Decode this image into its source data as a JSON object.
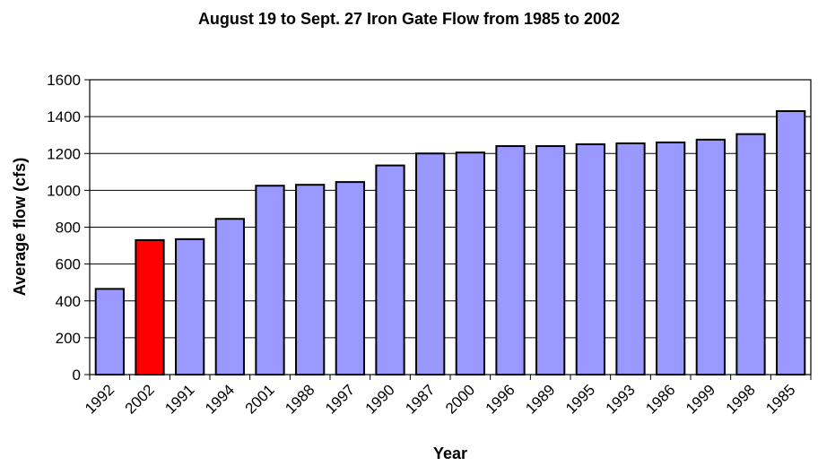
{
  "chart_data": {
    "type": "bar",
    "title": "August 19 to Sept. 27 Iron Gate Flow from 1985 to 2002",
    "xlabel": "Year",
    "ylabel": "Average flow (cfs)",
    "categories": [
      "1992",
      "2002",
      "1991",
      "1994",
      "2001",
      "1988",
      "1997",
      "1990",
      "1987",
      "2000",
      "1996",
      "1989",
      "1995",
      "1993",
      "1986",
      "1999",
      "1998",
      "1985"
    ],
    "values": [
      465,
      730,
      735,
      845,
      1025,
      1030,
      1045,
      1135,
      1200,
      1205,
      1240,
      1240,
      1250,
      1255,
      1260,
      1275,
      1305,
      1430
    ],
    "ylim": [
      0,
      1600
    ],
    "yticks": [
      0,
      200,
      400,
      600,
      800,
      1000,
      1200,
      1400,
      1600
    ],
    "grid": true,
    "legend": "none",
    "colors": {
      "bar": "#9999ff",
      "highlight": "#ff0000",
      "highlight_category": "2002",
      "stroke": "#000000",
      "grid": "#000000"
    }
  }
}
